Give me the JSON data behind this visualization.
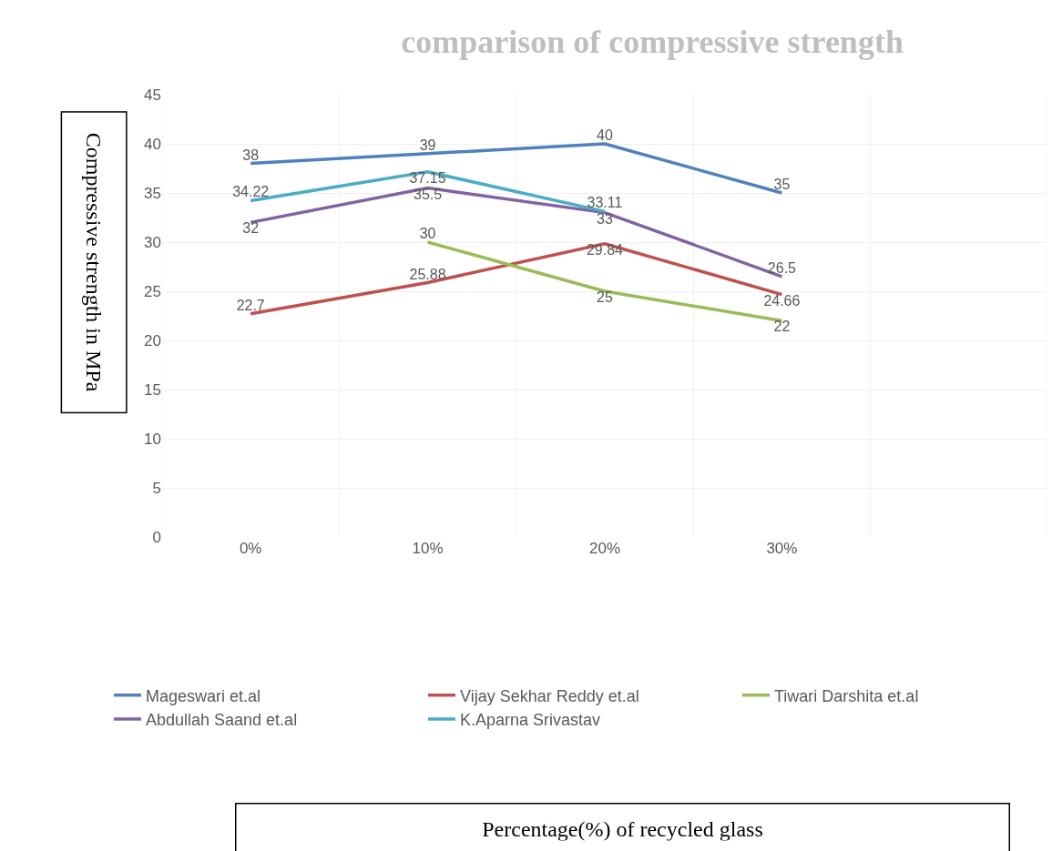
{
  "chart_data": {
    "type": "line",
    "title": "comparison of compressive strength",
    "annotations": [
      "Percentage(%) of recycled glass"
    ],
    "ylabel": "Compressive strength in MPa",
    "categories": [
      "0%",
      "10%",
      "20%",
      "30%",
      null
    ],
    "series": [
      {
        "name": "Mageswari et.al",
        "color": "#4f81bd",
        "values": [
          38,
          39,
          40,
          35,
          null
        ]
      },
      {
        "name": "Vijay Sekhar Reddy et.al",
        "color": "#c0504d",
        "values": [
          22.7,
          25.88,
          29.84,
          24.66,
          null
        ]
      },
      {
        "name": "Tiwari Darshita et.al",
        "color": "#9bbb59",
        "values": [
          null,
          30,
          25,
          22,
          null
        ]
      },
      {
        "name": "Abdullah Saand et.al",
        "color": "#8064a2",
        "values": [
          32,
          35.5,
          33,
          26.5,
          null
        ]
      },
      {
        "name": "K.Aparna Srivastav",
        "color": "#4bacc6",
        "values": [
          34.22,
          37.15,
          33.11,
          null,
          null
        ]
      }
    ],
    "ylim": [
      0,
      45
    ],
    "yticks": [
      0,
      5,
      10,
      15,
      20,
      25,
      30,
      35,
      40,
      45
    ],
    "grid": true,
    "legend": "bottom",
    "data_labels": true,
    "marker": "none",
    "line_style": "solid"
  }
}
